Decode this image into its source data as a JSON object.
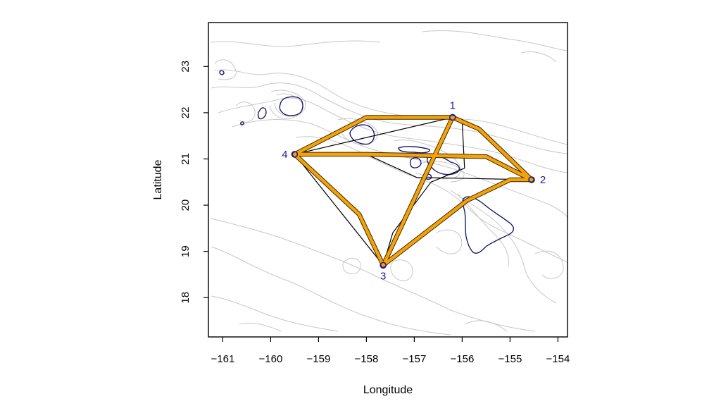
{
  "chart_data": {
    "type": "map",
    "xlabel": "Longitude",
    "ylabel": "Latitude",
    "xlim": [
      -161.3,
      -153.8
    ],
    "ylim": [
      17.15,
      23.95
    ],
    "x_ticks": [
      {
        "value": -161,
        "label": "−161"
      },
      {
        "value": -160,
        "label": "−160"
      },
      {
        "value": -159,
        "label": "−159"
      },
      {
        "value": -158,
        "label": "−158"
      },
      {
        "value": -157,
        "label": "−157"
      },
      {
        "value": -156,
        "label": "−156"
      },
      {
        "value": -155,
        "label": "−155"
      },
      {
        "value": -154,
        "label": "−154"
      }
    ],
    "y_ticks": [
      {
        "value": 18,
        "label": "18"
      },
      {
        "value": 19,
        "label": "19"
      },
      {
        "value": 20,
        "label": "20"
      },
      {
        "value": 21,
        "label": "21"
      },
      {
        "value": 22,
        "label": "22"
      },
      {
        "value": 23,
        "label": "23"
      }
    ],
    "sites": [
      {
        "label": "1",
        "lon": -156.2,
        "lat": 21.9
      },
      {
        "label": "2",
        "lon": -154.55,
        "lat": 20.55
      },
      {
        "label": "3",
        "lon": -157.65,
        "lat": 18.7
      },
      {
        "label": "4",
        "lon": -159.5,
        "lat": 21.1
      }
    ],
    "paths_optimal": [
      {
        "name": "4-1",
        "points": [
          [
            -159.5,
            21.1
          ],
          [
            -158.0,
            21.9
          ],
          [
            -156.2,
            21.9
          ]
        ]
      },
      {
        "name": "1-2",
        "points": [
          [
            -156.2,
            21.9
          ],
          [
            -155.65,
            21.65
          ],
          [
            -155.1,
            21.1
          ],
          [
            -154.55,
            20.55
          ]
        ]
      },
      {
        "name": "2-3",
        "points": [
          [
            -154.55,
            20.55
          ],
          [
            -155.0,
            20.55
          ],
          [
            -155.9,
            20.1
          ],
          [
            -157.65,
            18.7
          ]
        ]
      },
      {
        "name": "3-4",
        "points": [
          [
            -157.65,
            18.7
          ],
          [
            -158.15,
            19.8
          ],
          [
            -159.5,
            21.1
          ]
        ]
      },
      {
        "name": "4-2",
        "points": [
          [
            -159.5,
            21.1
          ],
          [
            -158.0,
            21.1
          ],
          [
            -155.5,
            21.05
          ],
          [
            -154.55,
            20.55
          ]
        ]
      },
      {
        "name": "3-1",
        "points": [
          [
            -157.65,
            18.7
          ],
          [
            -156.2,
            21.9
          ]
        ]
      }
    ],
    "paths_direct": [
      {
        "name": "4-1",
        "points": [
          [
            -159.5,
            21.1
          ],
          [
            -156.2,
            21.9
          ]
        ]
      },
      {
        "name": "4-2",
        "points": [
          [
            -159.5,
            21.1
          ],
          [
            -158.0,
            21.1
          ],
          [
            -156.95,
            20.6
          ],
          [
            -154.55,
            20.55
          ]
        ]
      },
      {
        "name": "4-3",
        "points": [
          [
            -159.5,
            21.1
          ],
          [
            -157.65,
            18.7
          ]
        ]
      },
      {
        "name": "1-3",
        "points": [
          [
            -156.2,
            21.9
          ],
          [
            -156.0,
            21.8
          ],
          [
            -155.95,
            20.8
          ],
          [
            -156.65,
            20.5
          ],
          [
            -157.45,
            19.4
          ],
          [
            -157.65,
            18.7
          ]
        ]
      }
    ],
    "colors": {
      "optimal_path": "#f5a20a",
      "direct_path": "#000000",
      "site": "#1a1aa0",
      "coast": "#1a1a6e",
      "contour": "#c8c8c8"
    }
  }
}
